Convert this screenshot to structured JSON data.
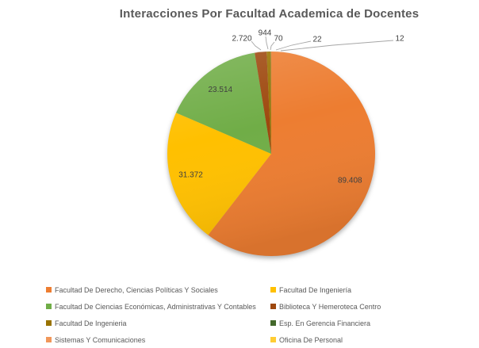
{
  "chart_data": {
    "type": "pie",
    "title": "Interacciones Por Facultad Academica de Docentes",
    "total": 148062,
    "start_angle_deg": 0,
    "direction": "clockwise",
    "slices": [
      {
        "label": "Facultad De Derecho, Ciencias Políticas Y Sociales",
        "value": 89408,
        "display": "89.408",
        "color": "#ED7D31",
        "label_placement": "inside"
      },
      {
        "label": "Facultad De Ingeniería",
        "value": 31372,
        "display": "31.372",
        "color": "#FFC000",
        "label_placement": "inside"
      },
      {
        "label": "Facultad De Ciencias Económicas, Administrativas Y Contables",
        "value": 23514,
        "display": "23.514",
        "color": "#70AD47",
        "label_placement": "inside"
      },
      {
        "label": "Biblioteca Y Hemeroteca Centro",
        "value": 2720,
        "display": "2.720",
        "color": "#9E480E",
        "label_placement": "outside"
      },
      {
        "label": "Facultad De Ingenieria",
        "value": 944,
        "display": "944",
        "color": "#997300",
        "label_placement": "outside"
      },
      {
        "label": "Esp. En Gerencia Financiera",
        "value": 70,
        "display": "70",
        "color": "#43682B",
        "label_placement": "outside"
      },
      {
        "label": "Sistemas Y Comunicaciones",
        "value": 22,
        "display": "22",
        "color": "#F1975A",
        "label_placement": "outside"
      },
      {
        "label": "Oficina De Personal",
        "value": 12,
        "display": "12",
        "color": "#FFCD33",
        "label_placement": "outside"
      }
    ],
    "legend": {
      "position": "bottom",
      "columns": 2
    },
    "colors": {
      "title": "#595959",
      "data_label": "#404040",
      "legend_text": "#595959",
      "leader_line": "#A6A6A6",
      "background": "#FFFFFF"
    }
  }
}
